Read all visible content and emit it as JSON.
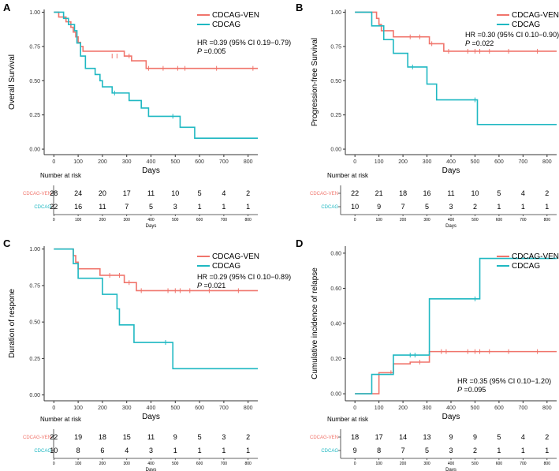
{
  "colors": {
    "ven": "#f0746b",
    "cdcag": "#1fb8c2",
    "axis": "#333333",
    "grid_text": "#333333"
  },
  "chart_data": [
    {
      "type": "line",
      "panel_label": "A",
      "xlabel": "Days",
      "ylabel": "Overall Survival",
      "xlim": [
        -40,
        840
      ],
      "ylim": [
        -0.04,
        1.02
      ],
      "x_ticks": [
        0,
        100,
        200,
        300,
        400,
        500,
        600,
        700,
        800
      ],
      "y_ticks": [
        "0.00",
        "0.25",
        "0.50",
        "0.75",
        "1.00"
      ],
      "legend": [
        "CDCAG-VEN",
        "CDCAG"
      ],
      "annotation_hr": "HR =0.39 (95% CI 0.19−0.79)",
      "annotation_p_label": "P",
      "annotation_p_value": " =0.005",
      "series": [
        {
          "name": "CDCAG-VEN",
          "steps": [
            [
              0,
              1.0
            ],
            [
              20,
              0.965
            ],
            [
              50,
              0.93
            ],
            [
              70,
              0.89
            ],
            [
              80,
              0.855
            ],
            [
              90,
              0.82
            ],
            [
              100,
              0.78
            ],
            [
              110,
              0.75
            ],
            [
              120,
              0.715
            ],
            [
              290,
              0.68
            ],
            [
              320,
              0.645
            ],
            [
              380,
              0.59
            ],
            [
              840,
              0.59
            ]
          ],
          "censors": [
            [
              240,
              0.68
            ],
            [
              260,
              0.68
            ],
            [
              310,
              0.68
            ],
            [
              390,
              0.59
            ],
            [
              450,
              0.59
            ],
            [
              510,
              0.59
            ],
            [
              540,
              0.59
            ],
            [
              670,
              0.59
            ],
            [
              820,
              0.59
            ]
          ]
        },
        {
          "name": "CDCAG",
          "steps": [
            [
              0,
              1.0
            ],
            [
              40,
              0.955
            ],
            [
              60,
              0.91
            ],
            [
              85,
              0.865
            ],
            [
              95,
              0.775
            ],
            [
              110,
              0.68
            ],
            [
              130,
              0.59
            ],
            [
              170,
              0.545
            ],
            [
              190,
              0.5
            ],
            [
              200,
              0.455
            ],
            [
              240,
              0.41
            ],
            [
              260,
              0.41
            ],
            [
              310,
              0.355
            ],
            [
              360,
              0.3
            ],
            [
              390,
              0.24
            ],
            [
              520,
              0.16
            ],
            [
              580,
              0.08
            ],
            [
              840,
              0.08
            ]
          ],
          "censors": [
            [
              250,
              0.41
            ],
            [
              490,
              0.24
            ]
          ]
        }
      ],
      "risk_title": "Number at risk",
      "risk_groups": [
        "CDCAG-VEN",
        "CDCAG"
      ],
      "risk_values": [
        [
          "28",
          "24",
          "20",
          "17",
          "11",
          "10",
          "5",
          "4",
          "2"
        ],
        [
          "22",
          "16",
          "11",
          "7",
          "5",
          "3",
          "1",
          "1",
          "1"
        ]
      ],
      "risk_xlabel": "Days",
      "risk_ticks": [
        0,
        100,
        200,
        300,
        400,
        500,
        600,
        700,
        800
      ]
    },
    {
      "type": "line",
      "panel_label": "B",
      "xlabel": "Days",
      "ylabel": "Progression-free Survival",
      "xlim": [
        -40,
        840
      ],
      "ylim": [
        -0.04,
        1.02
      ],
      "x_ticks": [
        0,
        100,
        200,
        300,
        400,
        500,
        600,
        700,
        800
      ],
      "y_ticks": [
        "0.00",
        "0.25",
        "0.50",
        "0.75",
        "1.00"
      ],
      "legend": [
        "CDCAG-VEN",
        "CDCAG"
      ],
      "annotation_hr": "HR =0.30 (95% CI 0.10−0.90)",
      "annotation_p_label": "P",
      "annotation_p_value": " =0.022",
      "series": [
        {
          "name": "CDCAG-VEN",
          "steps": [
            [
              0,
              1.0
            ],
            [
              90,
              0.955
            ],
            [
              100,
              0.91
            ],
            [
              110,
              0.865
            ],
            [
              160,
              0.82
            ],
            [
              310,
              0.77
            ],
            [
              370,
              0.715
            ],
            [
              840,
              0.715
            ]
          ],
          "censors": [
            [
              230,
              0.82
            ],
            [
              270,
              0.82
            ],
            [
              320,
              0.77
            ],
            [
              390,
              0.715
            ],
            [
              470,
              0.715
            ],
            [
              500,
              0.715
            ],
            [
              520,
              0.715
            ],
            [
              560,
              0.715
            ],
            [
              640,
              0.715
            ],
            [
              760,
              0.715
            ]
          ]
        },
        {
          "name": "CDCAG",
          "steps": [
            [
              0,
              1.0
            ],
            [
              70,
              0.9
            ],
            [
              120,
              0.8
            ],
            [
              160,
              0.7
            ],
            [
              220,
              0.6
            ],
            [
              300,
              0.475
            ],
            [
              340,
              0.36
            ],
            [
              510,
              0.18
            ],
            [
              840,
              0.18
            ]
          ],
          "censors": [
            [
              240,
              0.6
            ],
            [
              500,
              0.36
            ]
          ]
        }
      ],
      "risk_title": "Number at risk",
      "risk_groups": [
        "CDCAG-VEN",
        "CDCAG"
      ],
      "risk_values": [
        [
          "22",
          "21",
          "18",
          "16",
          "11",
          "10",
          "5",
          "4",
          "2"
        ],
        [
          "10",
          "9",
          "7",
          "5",
          "3",
          "2",
          "1",
          "1",
          "1"
        ]
      ],
      "risk_xlabel": "Days",
      "risk_ticks": [
        0,
        100,
        200,
        300,
        400,
        500,
        600,
        700,
        800
      ]
    },
    {
      "type": "line",
      "panel_label": "C",
      "xlabel": "Days",
      "ylabel": "Duration of respone",
      "xlim": [
        -40,
        840
      ],
      "ylim": [
        -0.04,
        1.02
      ],
      "x_ticks": [
        0,
        100,
        200,
        300,
        400,
        500,
        600,
        700,
        800
      ],
      "y_ticks": [
        "0.00",
        "0.25",
        "0.50",
        "0.75",
        "1.00"
      ],
      "legend": [
        "CDCAG-VEN",
        "CDCAG"
      ],
      "annotation_hr": "HR =0.29 (95% CI 0.10−0.89)",
      "annotation_p_label": "P",
      "annotation_p_value": " =0.021",
      "series": [
        {
          "name": "CDCAG-VEN",
          "steps": [
            [
              0,
              1.0
            ],
            [
              80,
              0.955
            ],
            [
              90,
              0.91
            ],
            [
              100,
              0.865
            ],
            [
              190,
              0.82
            ],
            [
              290,
              0.77
            ],
            [
              340,
              0.715
            ],
            [
              840,
              0.715
            ]
          ],
          "censors": [
            [
              230,
              0.82
            ],
            [
              270,
              0.82
            ],
            [
              310,
              0.77
            ],
            [
              360,
              0.715
            ],
            [
              470,
              0.715
            ],
            [
              500,
              0.715
            ],
            [
              520,
              0.715
            ],
            [
              560,
              0.715
            ],
            [
              640,
              0.715
            ],
            [
              760,
              0.715
            ]
          ]
        },
        {
          "name": "CDCAG",
          "steps": [
            [
              0,
              1.0
            ],
            [
              80,
              0.9
            ],
            [
              100,
              0.8
            ],
            [
              200,
              0.69
            ],
            [
              260,
              0.59
            ],
            [
              270,
              0.48
            ],
            [
              330,
              0.36
            ],
            [
              490,
              0.18
            ],
            [
              840,
              0.18
            ]
          ],
          "censors": [
            [
              460,
              0.36
            ]
          ]
        }
      ],
      "risk_title": "Number at risk",
      "risk_groups": [
        "CDCAG-VEN",
        "CDCAG"
      ],
      "risk_values": [
        [
          "22",
          "19",
          "18",
          "15",
          "11",
          "9",
          "5",
          "3",
          "2"
        ],
        [
          "10",
          "8",
          "6",
          "4",
          "3",
          "1",
          "1",
          "1",
          "1"
        ]
      ],
      "risk_xlabel": "Days",
      "risk_ticks": [
        0,
        100,
        200,
        300,
        400,
        500,
        600,
        700,
        800
      ]
    },
    {
      "type": "line",
      "panel_label": "D",
      "xlabel": "Days",
      "ylabel": "Cumulative incidence of relapse",
      "xlim": [
        -40,
        840
      ],
      "ylim": [
        -0.04,
        0.84
      ],
      "x_ticks": [
        0,
        100,
        200,
        300,
        400,
        500,
        600,
        700,
        800
      ],
      "y_ticks": [
        "0.00",
        "0.20",
        "0.40",
        "0.60",
        "0.80"
      ],
      "legend": [
        "CDCAG-VEN",
        "CDCAG"
      ],
      "annotation_hr": "HR =0.35 (95% CI 0.10−1.20)",
      "annotation_p_label": "P",
      "annotation_p_value": " =0.095",
      "series": [
        {
          "name": "CDCAG-VEN",
          "steps": [
            [
              0,
              0.0
            ],
            [
              90,
              0.0
            ],
            [
              100,
              0.12
            ],
            [
              160,
              0.17
            ],
            [
              230,
              0.18
            ],
            [
              310,
              0.24
            ],
            [
              840,
              0.24
            ]
          ],
          "censors": [
            [
              150,
              0.12
            ],
            [
              270,
              0.18
            ],
            [
              360,
              0.24
            ],
            [
              380,
              0.24
            ],
            [
              470,
              0.24
            ],
            [
              500,
              0.24
            ],
            [
              520,
              0.24
            ],
            [
              560,
              0.24
            ],
            [
              640,
              0.24
            ],
            [
              760,
              0.24
            ]
          ]
        },
        {
          "name": "CDCAG",
          "steps": [
            [
              0,
              0.0
            ],
            [
              70,
              0.11
            ],
            [
              160,
              0.22
            ],
            [
              300,
              0.22
            ],
            [
              310,
              0.54
            ],
            [
              510,
              0.54
            ],
            [
              520,
              0.77
            ],
            [
              840,
              0.77
            ]
          ],
          "censors": [
            [
              230,
              0.22
            ],
            [
              250,
              0.22
            ],
            [
              500,
              0.54
            ]
          ]
        }
      ],
      "risk_title": "Number at risk",
      "risk_groups": [
        "CDCAG-VEN",
        "CDCAG"
      ],
      "risk_values": [
        [
          "18",
          "17",
          "14",
          "13",
          "9",
          "9",
          "5",
          "4",
          "2"
        ],
        [
          "9",
          "8",
          "7",
          "5",
          "3",
          "2",
          "1",
          "1",
          "1"
        ]
      ],
      "risk_xlabel": "Days",
      "risk_ticks": [
        0,
        100,
        200,
        300,
        400,
        500,
        600,
        700,
        800
      ]
    }
  ]
}
